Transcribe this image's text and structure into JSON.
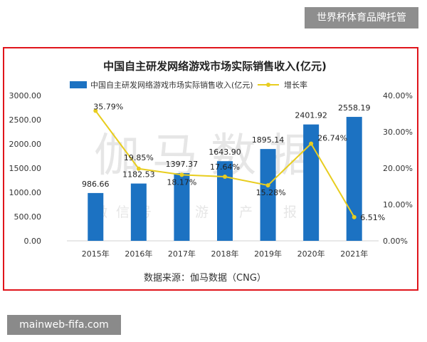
{
  "watermark_badge": "世界杯体育品牌托管",
  "footer_badge": "mainweb-fifa.com",
  "chart_data": {
    "type": "bar",
    "title": "中国自主研发网络游戏市场实际销售收入(亿元)",
    "categories": [
      "2015年",
      "2016年",
      "2017年",
      "2018年",
      "2019年",
      "2020年",
      "2021年"
    ],
    "series": [
      {
        "name": "中国自主研发网络游戏市场实际销售收入(亿元)",
        "kind": "bar",
        "axis": "left",
        "values": [
          986.66,
          1182.53,
          1397.37,
          1643.9,
          1895.14,
          2401.92,
          2558.19
        ],
        "labels": [
          "986.66",
          "1182.53",
          "1397.37",
          "1643.90",
          "1895.14",
          "2401.92",
          "2558.19"
        ]
      },
      {
        "name": "增长率",
        "kind": "line",
        "axis": "right",
        "values": [
          35.79,
          19.85,
          18.17,
          17.64,
          15.28,
          26.74,
          6.51
        ],
        "labels": [
          "35.79%",
          "19.85%",
          "18.17%",
          "17.64%",
          "15.28%",
          "26.74%",
          "6.51%"
        ]
      }
    ],
    "left_axis": {
      "ylim": [
        0,
        3000
      ],
      "ticks": [
        "0.00",
        "500.00",
        "1000.00",
        "1500.00",
        "2000.00",
        "2500.00",
        "3000.00"
      ]
    },
    "right_axis": {
      "ylim": [
        0,
        40
      ],
      "ticks": [
        "0.00%",
        "10.00%",
        "20.00%",
        "30.00%",
        "40.00%"
      ]
    },
    "source": "数据来源：伽马数据（CNG）",
    "watermark_big": "伽马数据",
    "watermark_small": "微信号 ：游戏产业报告",
    "colors": {
      "bar": "#1c72c2",
      "line": "#e8cd1f",
      "frame": "#e0141b"
    },
    "legend_position": "top",
    "grid": false
  }
}
